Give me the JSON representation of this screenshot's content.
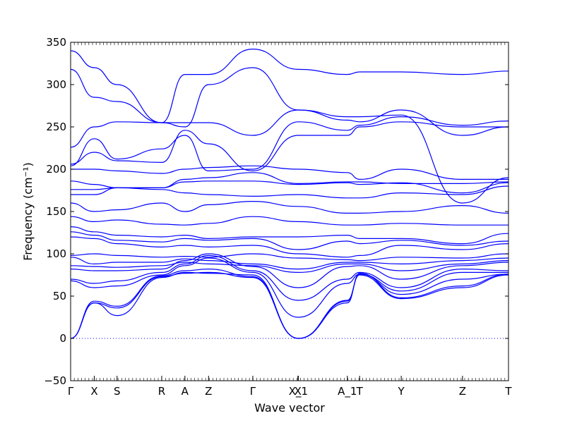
{
  "chart_data": {
    "type": "line",
    "title": "",
    "xlabel": "Wave vector",
    "ylabel": "Frequency (cm⁻¹)",
    "ylim": [
      -50,
      350
    ],
    "yticks": [
      -50,
      0,
      50,
      100,
      150,
      200,
      250,
      300,
      350
    ],
    "grid": false,
    "line_color": "#0000ff",
    "zero_line_color": "#0000ff",
    "xticks": [
      {
        "label": "Γ",
        "x": 0
      },
      {
        "label": "X",
        "x": 0.054
      },
      {
        "label": "S",
        "x": 0.106
      },
      {
        "label": "R",
        "x": 0.208
      },
      {
        "label": "A",
        "x": 0.261
      },
      {
        "label": "Z",
        "x": 0.315
      },
      {
        "label": "Γ",
        "x": 0.416
      },
      {
        "label": "X",
        "x": 0.519
      },
      {
        "label": "X_1",
        "x": 0.52
      },
      {
        "label": "A_1",
        "x": 0.632
      },
      {
        "label": "T",
        "x": 0.66
      },
      {
        "label": "Y",
        "x": 0.755
      },
      {
        "label": "Z",
        "x": 0.895
      },
      {
        "label": "T",
        "x": 1.0
      }
    ],
    "x": [
      0,
      0.054,
      0.106,
      0.208,
      0.261,
      0.315,
      0.416,
      0.52,
      0.632,
      0.66,
      0.755,
      0.895,
      1.0
    ],
    "series": [
      {
        "values": [
          0,
          42,
          27,
          72,
          78,
          77,
          75,
          0,
          45,
          75,
          47,
          60,
          75
        ]
      },
      {
        "values": [
          0,
          42,
          36,
          73,
          77,
          78,
          72,
          0,
          42,
          77,
          48,
          62,
          76
        ]
      },
      {
        "values": [
          0,
          44,
          38,
          74,
          80,
          82,
          73,
          0,
          44,
          76,
          52,
          70,
          76
        ]
      },
      {
        "values": [
          68,
          60,
          62,
          75,
          86,
          95,
          78,
          25,
          65,
          76,
          56,
          78,
          78
        ]
      },
      {
        "values": [
          70,
          65,
          68,
          78,
          88,
          98,
          80,
          45,
          70,
          78,
          60,
          82,
          80
        ]
      },
      {
        "values": [
          82,
          80,
          80,
          82,
          92,
          100,
          85,
          60,
          85,
          86,
          70,
          86,
          90
        ]
      },
      {
        "values": [
          86,
          85,
          84,
          86,
          90,
          88,
          86,
          78,
          88,
          88,
          80,
          88,
          92
        ]
      },
      {
        "values": [
          96,
          88,
          90,
          90,
          94,
          92,
          88,
          82,
          90,
          90,
          88,
          92,
          95
        ]
      },
      {
        "values": [
          98,
          100,
          98,
          96,
          97,
          96,
          100,
          95,
          93,
          92,
          96,
          95,
          100
        ]
      },
      {
        "values": [
          120,
          118,
          112,
          108,
          110,
          108,
          110,
          100,
          96,
          98,
          110,
          105,
          112
        ]
      },
      {
        "values": [
          126,
          122,
          116,
          114,
          118,
          116,
          118,
          105,
          115,
          112,
          116,
          110,
          115
        ]
      },
      {
        "values": [
          132,
          126,
          122,
          120,
          122,
          118,
          120,
          120,
          122,
          118,
          118,
          112,
          124
        ]
      },
      {
        "values": [
          144,
          138,
          140,
          135,
          134,
          136,
          144,
          138,
          134,
          134,
          136,
          134,
          134
        ]
      },
      {
        "values": [
          160,
          150,
          152,
          160,
          150,
          158,
          162,
          156,
          148,
          148,
          150,
          157,
          148
        ]
      },
      {
        "values": [
          170,
          170,
          178,
          176,
          172,
          170,
          168,
          170,
          166,
          166,
          172,
          170,
          180
        ]
      },
      {
        "values": [
          176,
          176,
          178,
          178,
          185,
          186,
          186,
          182,
          184,
          182,
          184,
          172,
          184
        ]
      },
      {
        "values": [
          186,
          182,
          178,
          178,
          188,
          190,
          196,
          183,
          185,
          185,
          183,
          183,
          185
        ]
      },
      {
        "values": [
          200,
          200,
          198,
          195,
          200,
          202,
          204,
          200,
          196,
          188,
          200,
          188,
          188
        ]
      },
      {
        "values": [
          206,
          220,
          210,
          208,
          246,
          230,
          198,
          240,
          240,
          250,
          256,
          250,
          250
        ]
      },
      {
        "values": [
          204,
          236,
          212,
          224,
          240,
          198,
          200,
          256,
          246,
          252,
          262,
          252,
          257
        ]
      },
      {
        "values": [
          226,
          250,
          256,
          255,
          255,
          255,
          240,
          270,
          258,
          256,
          270,
          240,
          250
        ]
      },
      {
        "values": [
          318,
          285,
          280,
          255,
          250,
          300,
          320,
          270,
          262,
          262,
          264,
          160,
          190
        ]
      },
      {
        "values": [
          340,
          320,
          300,
          255,
          312,
          312,
          342,
          318,
          312,
          315,
          315,
          312,
          316
        ]
      }
    ]
  }
}
